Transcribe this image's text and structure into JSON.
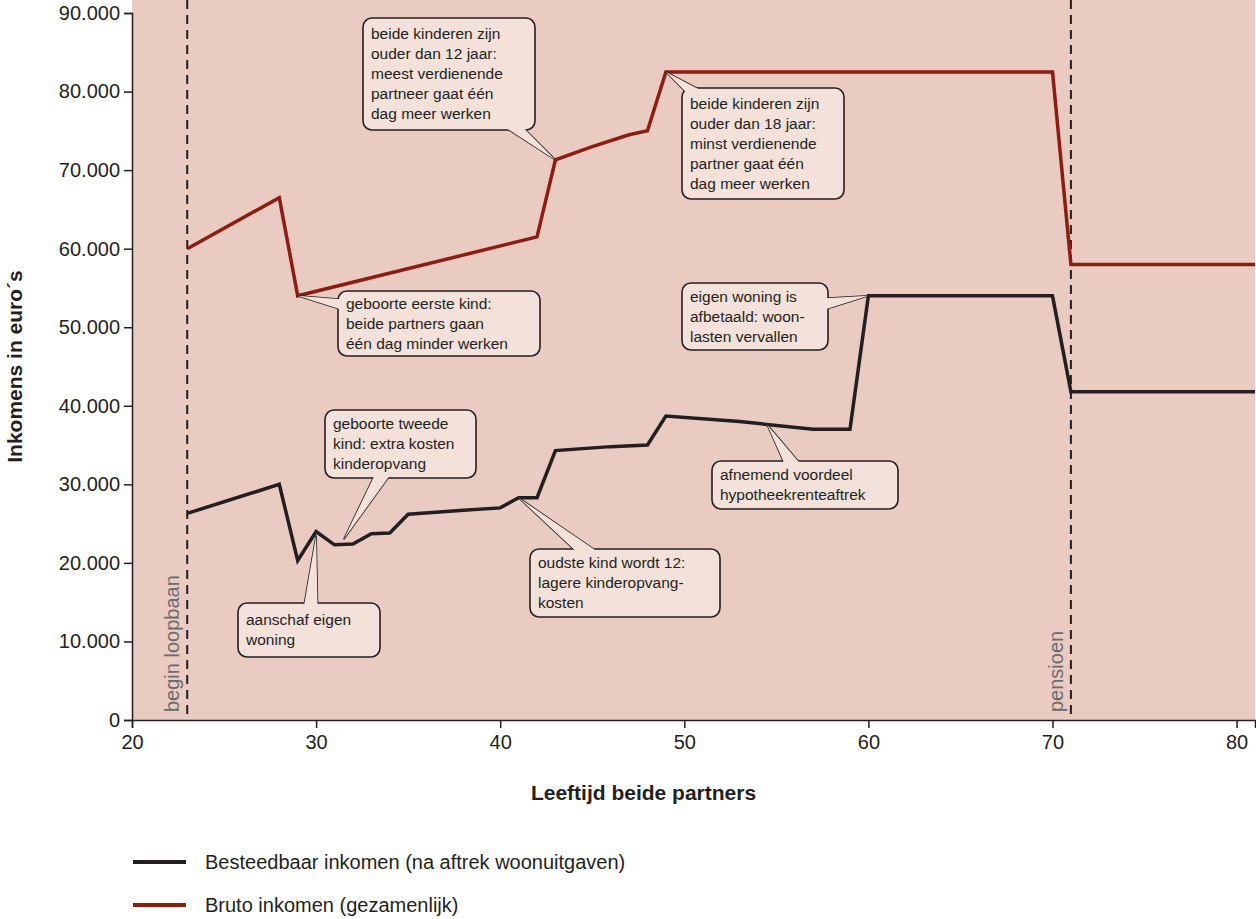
{
  "chart_data": {
    "type": "line",
    "x_label": "Leeftijd beide partners",
    "y_label": "Inkomens in euro´s",
    "xlim": [
      20,
      81
    ],
    "xticks": [
      20,
      30,
      40,
      50,
      60,
      70,
      80
    ],
    "ylim": [
      0,
      90000
    ],
    "yticks": [
      0,
      {
        "value": 10000,
        "label": "10.000"
      },
      {
        "value": 20000,
        "label": "20.000"
      },
      {
        "value": 30000,
        "label": "30.000"
      },
      {
        "value": 40000,
        "label": "40.000"
      },
      {
        "value": 50000,
        "label": "50.000"
      },
      {
        "value": 60000,
        "label": "60.000"
      },
      {
        "value": 70000,
        "label": "70.000"
      },
      {
        "value": 80000,
        "label": "80.000"
      },
      {
        "value": 90000,
        "label": "90.000"
      }
    ],
    "grid": false,
    "legend": "bottom",
    "series": [
      {
        "name": "Besteedbaar inkomen (na aftrek woonuitgaven)",
        "color": "#231f20",
        "x": [
          23,
          28,
          29,
          30,
          31,
          32,
          33,
          34,
          35,
          38,
          40,
          41,
          42,
          43,
          46,
          48,
          49,
          53,
          57,
          59,
          60,
          70,
          71,
          81
        ],
        "values": [
          26300,
          30000,
          20300,
          24000,
          22300,
          22400,
          23700,
          23800,
          26200,
          26700,
          27000,
          28300,
          28300,
          34300,
          34800,
          35000,
          38700,
          38000,
          37000,
          37000,
          54000,
          54000,
          41800,
          41800
        ]
      },
      {
        "name": "Bruto inkomen (gezamenlijk)",
        "color": "#8c1d10",
        "x": [
          23,
          28,
          29,
          42,
          43,
          45,
          47,
          48,
          49,
          70,
          71,
          81
        ],
        "values": [
          60000,
          66500,
          54000,
          61500,
          71300,
          73000,
          74500,
          75000,
          82500,
          82500,
          58000,
          58000
        ]
      }
    ],
    "vlines": [
      {
        "x": 23,
        "label": "begin loopbaan"
      },
      {
        "x": 71,
        "label": "pensioen"
      }
    ],
    "annotations": [
      {
        "text": [
          "beide kinderen zijn",
          "ouder dan 12 jaar:",
          "meest verdienende",
          "partneer gaat één",
          "dag meer werken"
        ],
        "x": 43,
        "y": 71300
      },
      {
        "text": [
          "beide kinderen zijn",
          "ouder dan 18 jaar:",
          "minst verdienende",
          "partner gaat één",
          "dag meer werken"
        ],
        "x": 49,
        "y": 82500
      },
      {
        "text": [
          "geboorte eerste kind:",
          "beide partners gaan",
          "één dag minder werken"
        ],
        "x": 29,
        "y": 54000
      },
      {
        "text": [
          "eigen woning is",
          "afbetaald: woon-",
          "lasten vervallen"
        ],
        "x": 60,
        "y": 54000
      },
      {
        "text": [
          "geboorte tweede",
          "kind: extra kosten",
          "kinderopvang"
        ],
        "x": 31.5,
        "y": 23000
      },
      {
        "text": [
          "afnemend voordeel",
          "hypotheekrenteaftrek"
        ],
        "x": 54.5,
        "y": 37600
      },
      {
        "text": [
          "aanschaf eigen",
          "woning"
        ],
        "x": 30,
        "y": 23500
      },
      {
        "text": [
          "oudste kind wordt 12:",
          "lagere kinderopvang-",
          "kosten"
        ],
        "x": 41,
        "y": 28300
      }
    ]
  }
}
